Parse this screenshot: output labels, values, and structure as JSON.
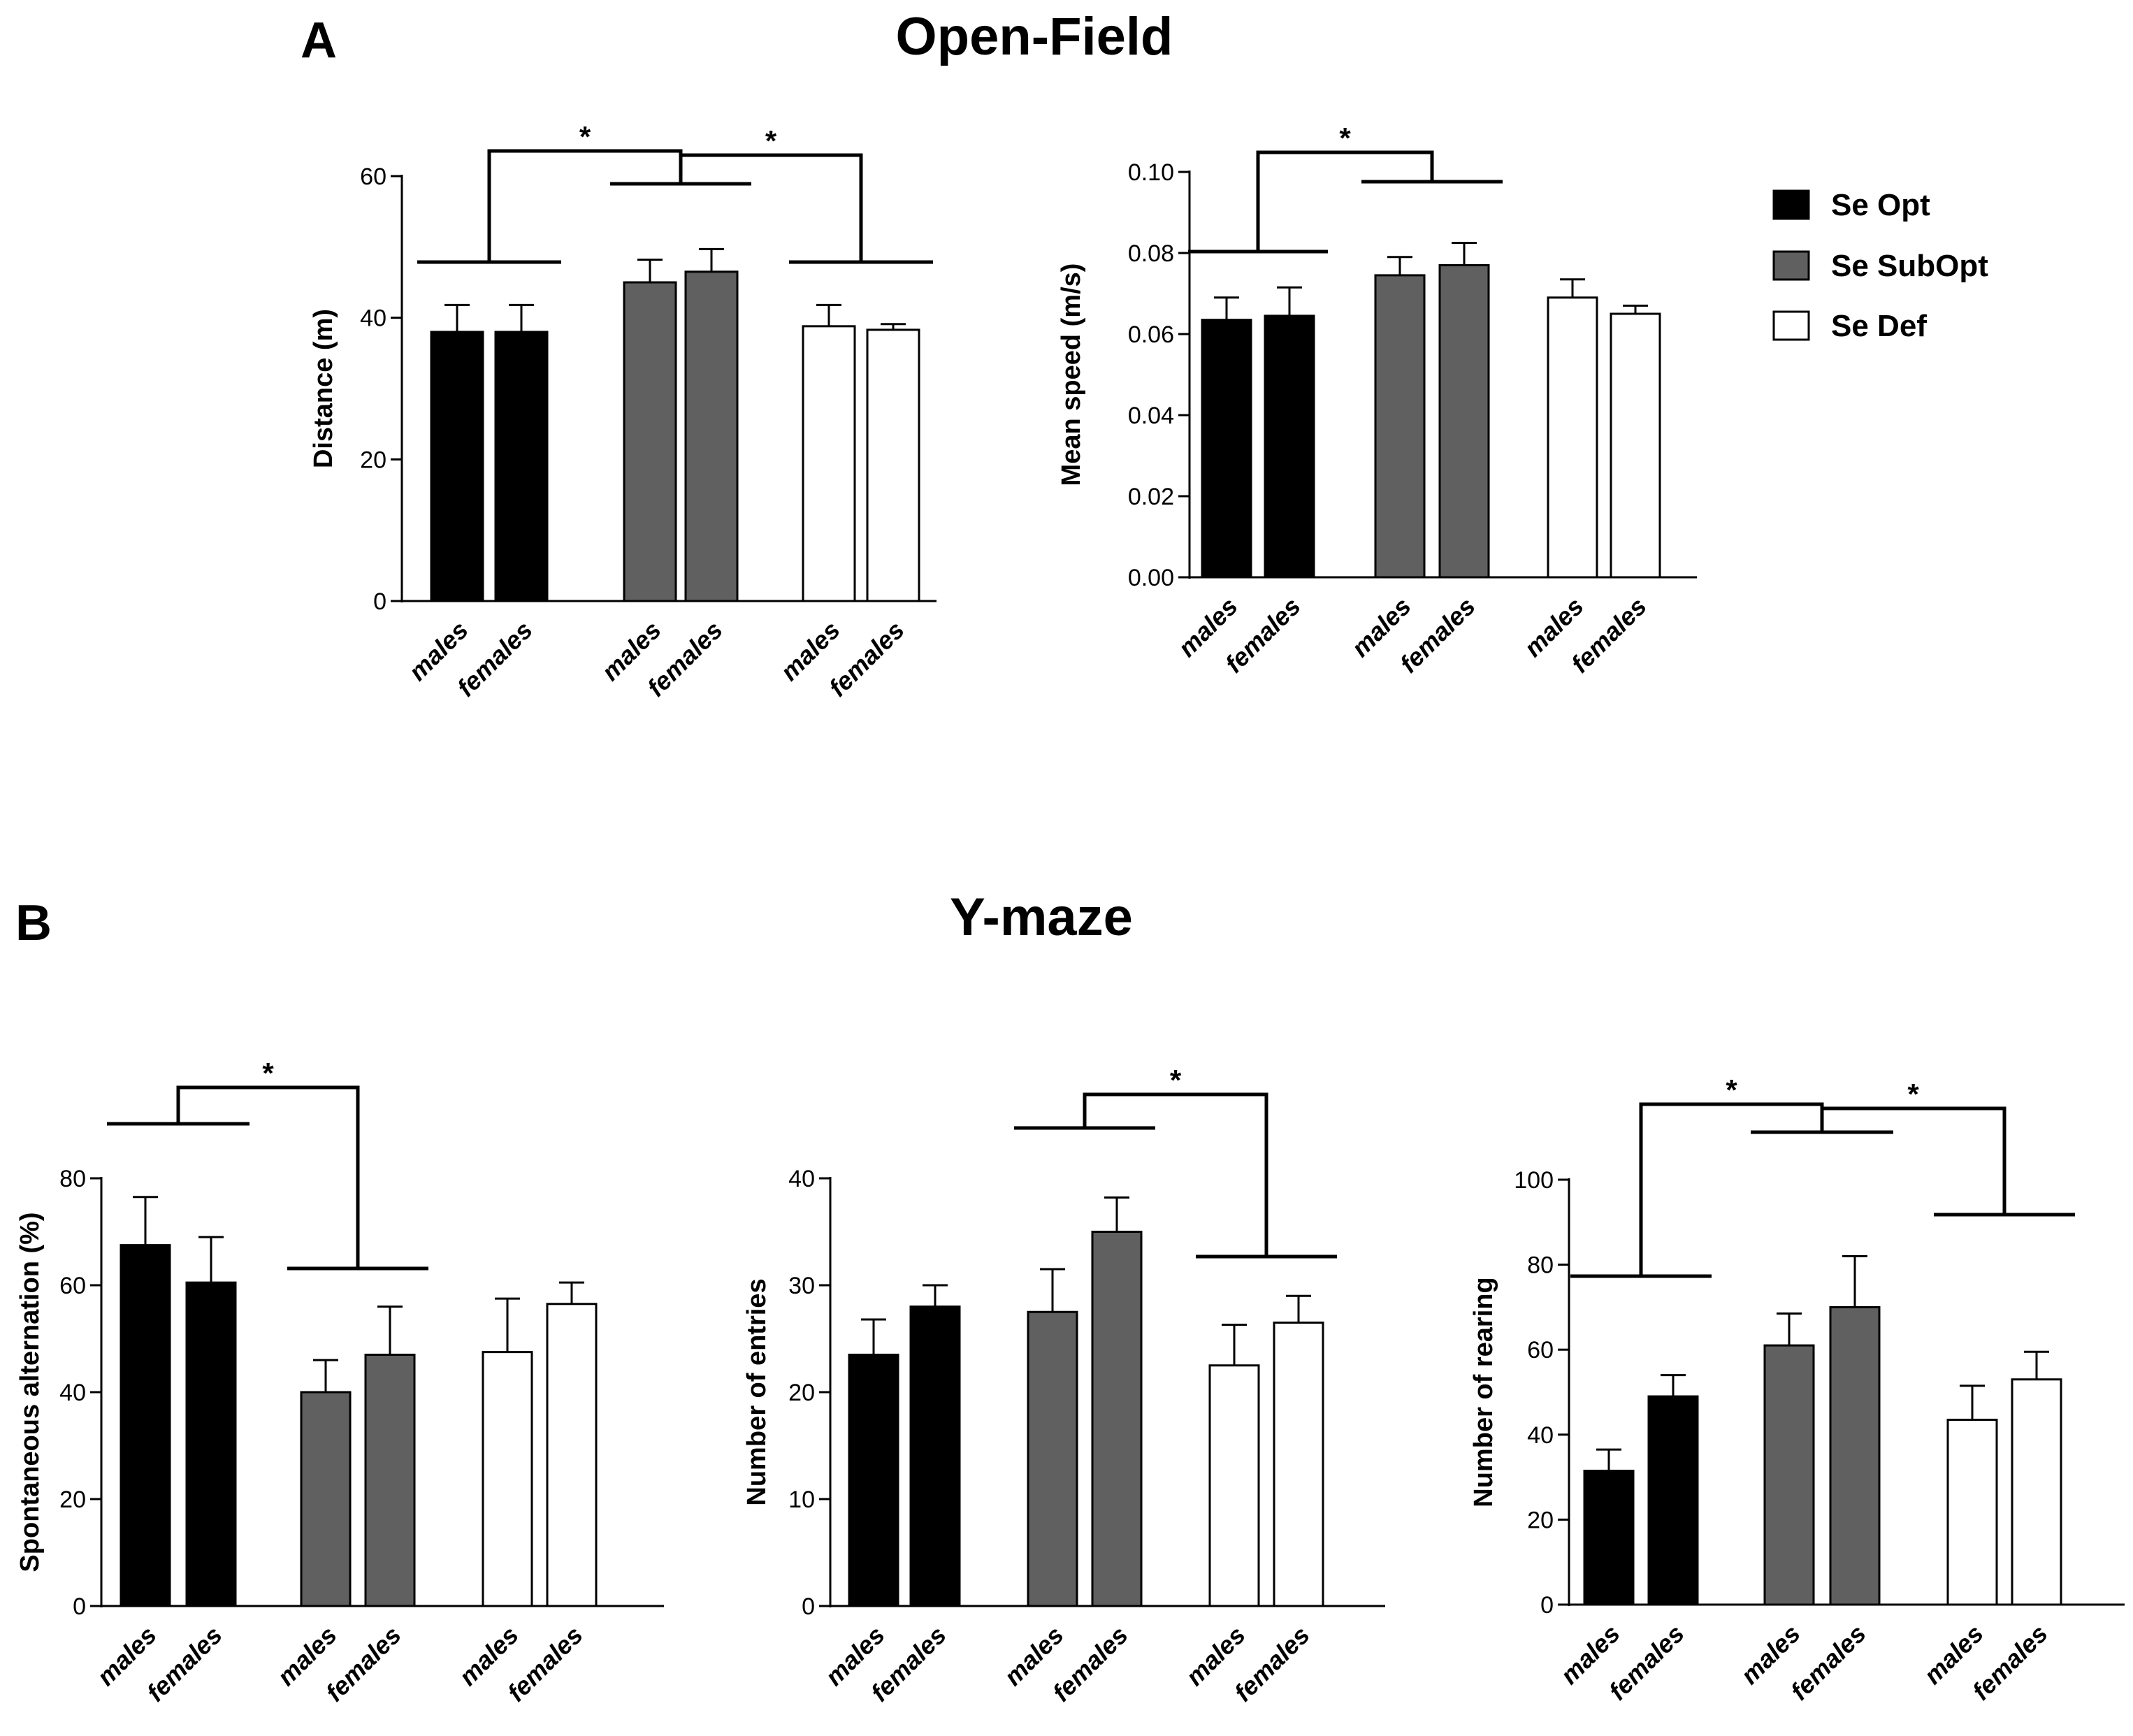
{
  "panel_a": {
    "letter": "A",
    "title": "Open-Field"
  },
  "panel_b": {
    "letter": "B",
    "title": "Y-maze"
  },
  "legend": {
    "items": [
      {
        "label": "Se Opt",
        "color": "#000000"
      },
      {
        "label": "Se SubOpt",
        "color": "#606060"
      },
      {
        "label": "Se Def",
        "color": "#ffffff"
      }
    ]
  },
  "chart_data": [
    {
      "type": "bar",
      "title": "Open-Field",
      "ylabel": "Distance (m)",
      "ylim": [
        0,
        60
      ],
      "yticks": [
        0,
        20,
        40,
        60
      ],
      "categories": [
        "males",
        "females",
        "males",
        "females",
        "males",
        "females"
      ],
      "groups": [
        "Se Opt",
        "Se Opt",
        "Se SubOpt",
        "Se SubOpt",
        "Se Def",
        "Se Def"
      ],
      "values": [
        38,
        38,
        45,
        46.5,
        38.8,
        38.3
      ],
      "errors": [
        3.8,
        3.8,
        3.2,
        3.2,
        3.0,
        0.8
      ],
      "significance": [
        {
          "label": "*",
          "left_group": [
            0,
            1
          ],
          "right_group": [
            2,
            3
          ]
        },
        {
          "label": "*",
          "left_group": [
            2,
            3
          ],
          "right_group": [
            4,
            5
          ]
        }
      ]
    },
    {
      "type": "bar",
      "title": "Open-Field",
      "ylabel": "Mean speed (m/s)",
      "ylim": [
        0,
        0.1
      ],
      "yticks": [
        "0.00",
        "0.02",
        "0.04",
        "0.06",
        "0.08",
        "0.10"
      ],
      "categories": [
        "males",
        "females",
        "males",
        "females",
        "males",
        "females"
      ],
      "groups": [
        "Se Opt",
        "Se Opt",
        "Se SubOpt",
        "Se SubOpt",
        "Se Def",
        "Se Def"
      ],
      "values": [
        0.0635,
        0.0645,
        0.0745,
        0.077,
        0.069,
        0.065
      ],
      "errors": [
        0.0055,
        0.007,
        0.0045,
        0.0055,
        0.0045,
        0.002
      ],
      "significance": [
        {
          "label": "*",
          "left_group": [
            0,
            1
          ],
          "right_group": [
            2,
            3
          ]
        }
      ]
    },
    {
      "type": "bar",
      "title": "Y-maze",
      "ylabel": "Spontaneous alternation (%)",
      "ylim": [
        0,
        80
      ],
      "yticks": [
        0,
        20,
        40,
        60,
        80
      ],
      "categories": [
        "males",
        "females",
        "males",
        "females",
        "males",
        "females"
      ],
      "groups": [
        "Se Opt",
        "Se Opt",
        "Se SubOpt",
        "Se SubOpt",
        "Se Def",
        "Se Def"
      ],
      "values": [
        67.5,
        60.5,
        40,
        47,
        47.5,
        56.5
      ],
      "errors": [
        9,
        8.5,
        6,
        9,
        10,
        4
      ],
      "significance": [
        {
          "label": "*",
          "left_group": [
            0,
            1
          ],
          "right_group": [
            2,
            3
          ]
        }
      ]
    },
    {
      "type": "bar",
      "title": "Y-maze",
      "ylabel": "Number of entries",
      "ylim": [
        0,
        40
      ],
      "yticks": [
        0,
        10,
        20,
        30,
        40
      ],
      "categories": [
        "males",
        "females",
        "males",
        "females",
        "males",
        "females"
      ],
      "groups": [
        "Se Opt",
        "Se Opt",
        "Se SubOpt",
        "Se SubOpt",
        "Se Def",
        "Se Def"
      ],
      "values": [
        23.5,
        28,
        27.5,
        35,
        22.5,
        26.5
      ],
      "errors": [
        3.3,
        2,
        4,
        3.2,
        3.8,
        2.5
      ],
      "significance": [
        {
          "label": "*",
          "left_group": [
            2,
            3
          ],
          "right_group": [
            4,
            5
          ]
        }
      ]
    },
    {
      "type": "bar",
      "title": "Y-maze",
      "ylabel": "Number of rearing",
      "ylim": [
        0,
        100
      ],
      "yticks": [
        0,
        20,
        40,
        60,
        80,
        100
      ],
      "categories": [
        "males",
        "females",
        "males",
        "females",
        "males",
        "females"
      ],
      "groups": [
        "Se Opt",
        "Se Opt",
        "Se SubOpt",
        "Se SubOpt",
        "Se Def",
        "Se Def"
      ],
      "values": [
        31.5,
        49,
        61,
        70,
        43.5,
        53
      ],
      "errors": [
        5,
        5,
        7.5,
        12,
        8,
        6.5
      ],
      "significance": [
        {
          "label": "*",
          "left_group": [
            0,
            1
          ],
          "right_group": [
            2,
            3
          ]
        },
        {
          "label": "*",
          "left_group": [
            2,
            3
          ],
          "right_group": [
            4,
            5
          ]
        }
      ]
    }
  ]
}
